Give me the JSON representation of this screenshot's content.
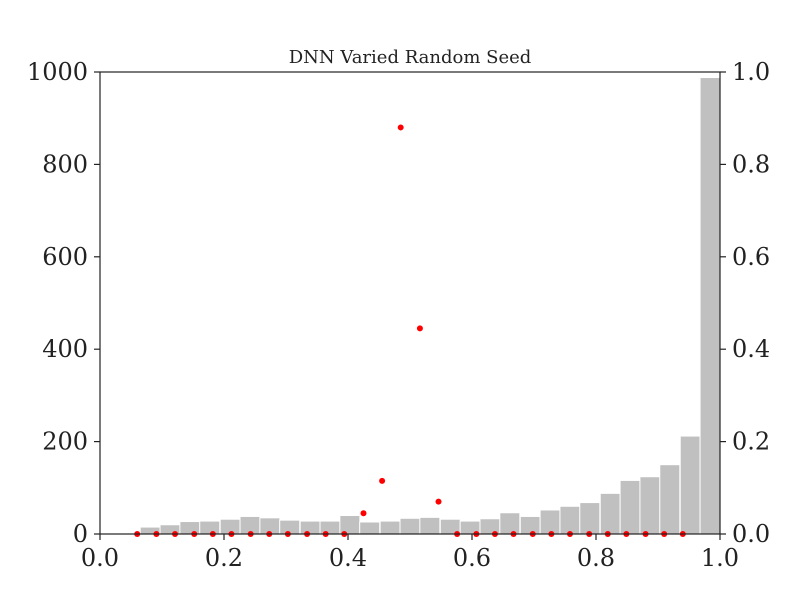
{
  "chart_data": {
    "type": "bar",
    "title": "DNN Varied Random Seed",
    "xlabel": "",
    "ylabel": "",
    "xlim": [
      0.0,
      1.0
    ],
    "ylim": [
      0,
      1000
    ],
    "y2lim": [
      0.0,
      1.0
    ],
    "x_ticks": [
      "0.0",
      "0.2",
      "0.4",
      "0.6",
      "0.8",
      "1.0"
    ],
    "y_ticks": [
      "0",
      "200",
      "400",
      "600",
      "800",
      "1000"
    ],
    "y2_ticks": [
      "0.0",
      "0.2",
      "0.4",
      "0.6",
      "0.8",
      "1.0"
    ],
    "grid": false,
    "bar_color": "#c0c0c0",
    "point_color": "#ff0000",
    "series": [
      {
        "type": "histogram",
        "axis": "left",
        "bin_width": 0.0323,
        "bins": [
          {
            "x": 0.081,
            "value": 15
          },
          {
            "x": 0.113,
            "value": 20
          },
          {
            "x": 0.145,
            "value": 27
          },
          {
            "x": 0.177,
            "value": 28
          },
          {
            "x": 0.21,
            "value": 32
          },
          {
            "x": 0.242,
            "value": 38
          },
          {
            "x": 0.274,
            "value": 35
          },
          {
            "x": 0.306,
            "value": 30
          },
          {
            "x": 0.339,
            "value": 28
          },
          {
            "x": 0.371,
            "value": 28
          },
          {
            "x": 0.403,
            "value": 40
          },
          {
            "x": 0.435,
            "value": 26
          },
          {
            "x": 0.468,
            "value": 28
          },
          {
            "x": 0.5,
            "value": 34
          },
          {
            "x": 0.532,
            "value": 36
          },
          {
            "x": 0.565,
            "value": 32
          },
          {
            "x": 0.597,
            "value": 28
          },
          {
            "x": 0.629,
            "value": 33
          },
          {
            "x": 0.661,
            "value": 46
          },
          {
            "x": 0.694,
            "value": 38
          },
          {
            "x": 0.726,
            "value": 52
          },
          {
            "x": 0.758,
            "value": 60
          },
          {
            "x": 0.79,
            "value": 68
          },
          {
            "x": 0.823,
            "value": 88
          },
          {
            "x": 0.855,
            "value": 116
          },
          {
            "x": 0.887,
            "value": 124
          },
          {
            "x": 0.919,
            "value": 150
          },
          {
            "x": 0.952,
            "value": 212
          },
          {
            "x": 0.984,
            "value": 988
          }
        ]
      },
      {
        "type": "scatter",
        "axis": "right",
        "points": [
          {
            "x": 0.06,
            "y": 0.0
          },
          {
            "x": 0.091,
            "y": 0.0
          },
          {
            "x": 0.121,
            "y": 0.0
          },
          {
            "x": 0.152,
            "y": 0.0
          },
          {
            "x": 0.182,
            "y": 0.0
          },
          {
            "x": 0.212,
            "y": 0.0
          },
          {
            "x": 0.243,
            "y": 0.0
          },
          {
            "x": 0.273,
            "y": 0.0
          },
          {
            "x": 0.303,
            "y": 0.0
          },
          {
            "x": 0.334,
            "y": 0.0
          },
          {
            "x": 0.364,
            "y": 0.0
          },
          {
            "x": 0.394,
            "y": 0.0
          },
          {
            "x": 0.425,
            "y": 0.045
          },
          {
            "x": 0.455,
            "y": 0.115
          },
          {
            "x": 0.485,
            "y": 0.88
          },
          {
            "x": 0.516,
            "y": 0.445
          },
          {
            "x": 0.546,
            "y": 0.07
          },
          {
            "x": 0.576,
            "y": 0.0
          },
          {
            "x": 0.607,
            "y": 0.0
          },
          {
            "x": 0.637,
            "y": 0.0
          },
          {
            "x": 0.667,
            "y": 0.0
          },
          {
            "x": 0.698,
            "y": 0.0
          },
          {
            "x": 0.728,
            "y": 0.0
          },
          {
            "x": 0.758,
            "y": 0.0
          },
          {
            "x": 0.789,
            "y": 0.0
          },
          {
            "x": 0.819,
            "y": 0.0
          },
          {
            "x": 0.849,
            "y": 0.0
          },
          {
            "x": 0.88,
            "y": 0.0
          },
          {
            "x": 0.91,
            "y": 0.0
          },
          {
            "x": 0.94,
            "y": 0.0
          }
        ]
      }
    ]
  }
}
